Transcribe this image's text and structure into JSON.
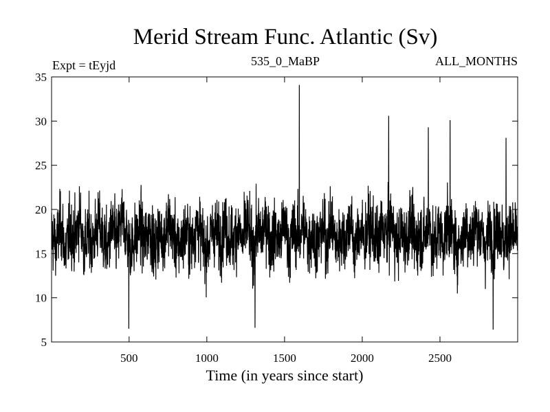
{
  "chart_data": {
    "type": "line",
    "title": "Merid Stream Func. Atlantic (Sv)",
    "subtitle_left": "Expt = tEyjd",
    "subtitle_center": "535_0_MaBP",
    "subtitle_right": "ALL_MONTHS",
    "xlabel": "Time (in years since start)",
    "ylabel": "",
    "xlim": [
      1,
      3000
    ],
    "ylim": [
      5,
      35
    ],
    "x_ticks": [
      500,
      1000,
      1500,
      2000,
      2500
    ],
    "y_ticks": [
      5,
      10,
      15,
      20,
      25,
      30,
      35
    ],
    "x_tick_labels": [
      "500",
      "1000",
      "1500",
      "2000",
      "2500"
    ],
    "y_tick_labels": [
      "5",
      "10",
      "15",
      "20",
      "25",
      "30",
      "35"
    ],
    "grid": false,
    "line_color": "#000000",
    "series": [
      {
        "x_start": 1,
        "x_step": 30,
        "mean": 17,
        "values": [
          17.2,
          16.1,
          18.4,
          15.3,
          17.8,
          16.6,
          18.9,
          15.9,
          17.1,
          16.4,
          18.2,
          16.8,
          15.7,
          17.9,
          16.3,
          18.6,
          17.4,
          15.8,
          16.9,
          17.7,
          16.2,
          18.1,
          15.6,
          17.3,
          16.7,
          18.5,
          17.0,
          15.9,
          16.5,
          17.6,
          16.0,
          18.3,
          17.2,
          15.5,
          16.8,
          17.9,
          16.4,
          18.0,
          17.1,
          16.6,
          17.8,
          16.2,
          18.4,
          15.7,
          17.5,
          16.9,
          18.7,
          16.1,
          17.3,
          16.5,
          18.2,
          15.8,
          17.6,
          16.7,
          18.1,
          16.3,
          17.4,
          15.9,
          17.9,
          16.6,
          18.3,
          16.0,
          17.2,
          16.8,
          18.5,
          15.6,
          17.7,
          16.4,
          18.0,
          17.1,
          16.2,
          17.8,
          16.9,
          18.6,
          15.8,
          17.5,
          16.5,
          18.2,
          16.1,
          17.3,
          16.7,
          18.4,
          15.7,
          17.6,
          16.3,
          18.1,
          17.0,
          15.9,
          16.8,
          17.9,
          16.4,
          18.3,
          17.2,
          16.0,
          17.7,
          16.6,
          18.5,
          15.8,
          17.4,
          16.9
        ],
        "peaks": [
          [
            1595,
            34.1
          ],
          [
            2170,
            30.6
          ],
          [
            2425,
            29.3
          ],
          [
            2565,
            30.1
          ],
          [
            2925,
            28.1
          ],
          [
            498,
            6.5
          ],
          [
            2842,
            6.4
          ],
          [
            1310,
            6.6
          ]
        ]
      }
    ]
  }
}
